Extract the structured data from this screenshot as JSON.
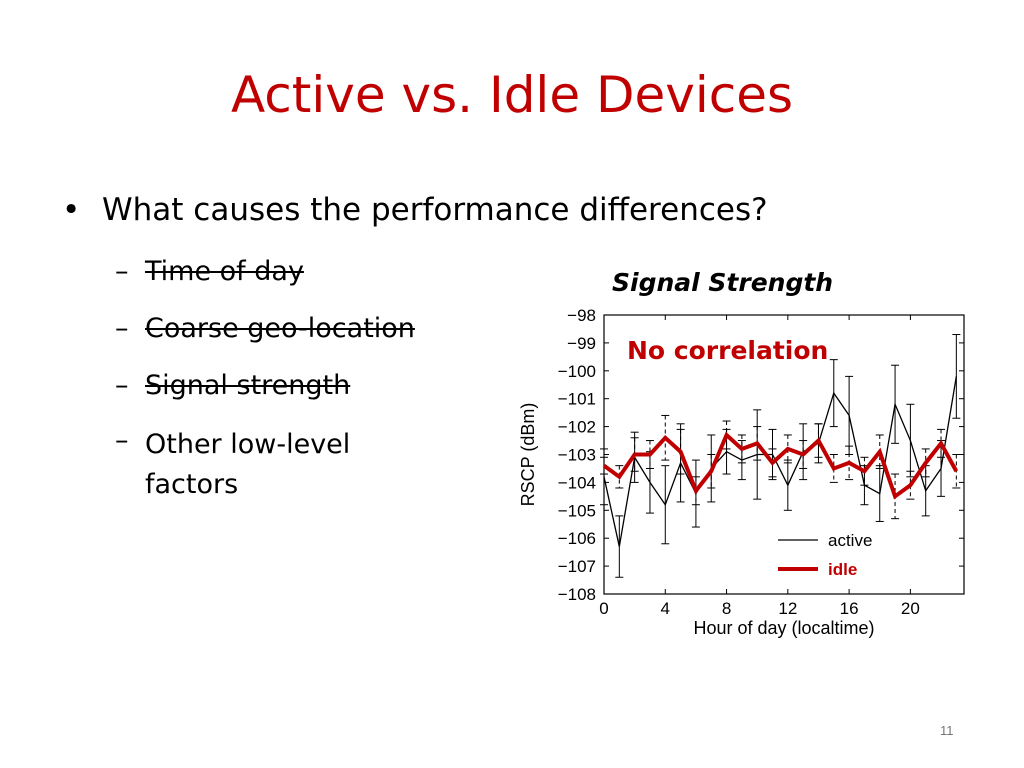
{
  "slide": {
    "title": "Active vs. Idle Devices",
    "bullet_symbol": "•",
    "bullet": "What causes the performance differences?",
    "dash_symbol": "–",
    "sub_items": [
      {
        "text": "Time of day",
        "struck": true
      },
      {
        "text": "Coarse geo-location",
        "struck": true
      },
      {
        "text": "Signal strength",
        "struck": true
      },
      {
        "text": "Other low-level factors",
        "line1": "Other low-level",
        "line2": "factors",
        "struck": false
      }
    ],
    "page_number": "11"
  },
  "chart_data": {
    "type": "line",
    "title": "Signal Strength",
    "annotation": "No correlation",
    "xlabel": "Hour of day (localtime)",
    "ylabel": "RSCP (dBm)",
    "xlim": [
      0,
      23.5
    ],
    "ylim": [
      -108,
      -98
    ],
    "xticks": [
      0,
      4,
      8,
      12,
      16,
      20
    ],
    "yticks": [
      -98,
      -99,
      -100,
      -101,
      -102,
      -103,
      -104,
      -105,
      -106,
      -107,
      -108
    ],
    "legend_position": "bottom-right",
    "x": [
      0,
      1,
      2,
      3,
      4,
      5,
      6,
      7,
      8,
      9,
      10,
      11,
      12,
      13,
      14,
      15,
      16,
      17,
      18,
      19,
      20,
      21,
      22,
      23
    ],
    "series": [
      {
        "name": "active",
        "color": "#000000",
        "values": [
          -103.8,
          -106.3,
          -103.1,
          -104.0,
          -104.8,
          -103.3,
          -104.4,
          -103.5,
          -102.9,
          -103.2,
          -103.0,
          -103.0,
          -104.1,
          -102.9,
          -102.6,
          -100.8,
          -101.6,
          -104.1,
          -104.4,
          -101.2,
          -102.5,
          -104.3,
          -103.5,
          -100.2
        ],
        "error": [
          1.0,
          1.1,
          0.9,
          1.1,
          1.4,
          1.4,
          1.2,
          1.2,
          0.8,
          0.7,
          1.6,
          0.9,
          0.9,
          1.0,
          0.7,
          1.2,
          1.4,
          0.7,
          1.0,
          1.4,
          1.3,
          0.9,
          1.0,
          1.5
        ]
      },
      {
        "name": "idle",
        "color": "#c00000",
        "values": [
          -103.4,
          -103.8,
          -103.0,
          -103.0,
          -102.4,
          -102.9,
          -104.3,
          -103.6,
          -102.3,
          -102.8,
          -102.6,
          -103.3,
          -102.8,
          -103.0,
          -102.5,
          -103.5,
          -103.3,
          -103.6,
          -102.9,
          -104.5,
          -104.1,
          -103.3,
          -102.6,
          -103.6
        ],
        "error": [
          0.3,
          0.4,
          0.6,
          0.5,
          0.8,
          0.8,
          0.5,
          0.6,
          0.5,
          0.5,
          0.6,
          0.5,
          0.5,
          0.5,
          0.6,
          0.5,
          0.6,
          0.5,
          0.6,
          0.8,
          0.5,
          0.5,
          0.5,
          0.6
        ]
      }
    ]
  }
}
